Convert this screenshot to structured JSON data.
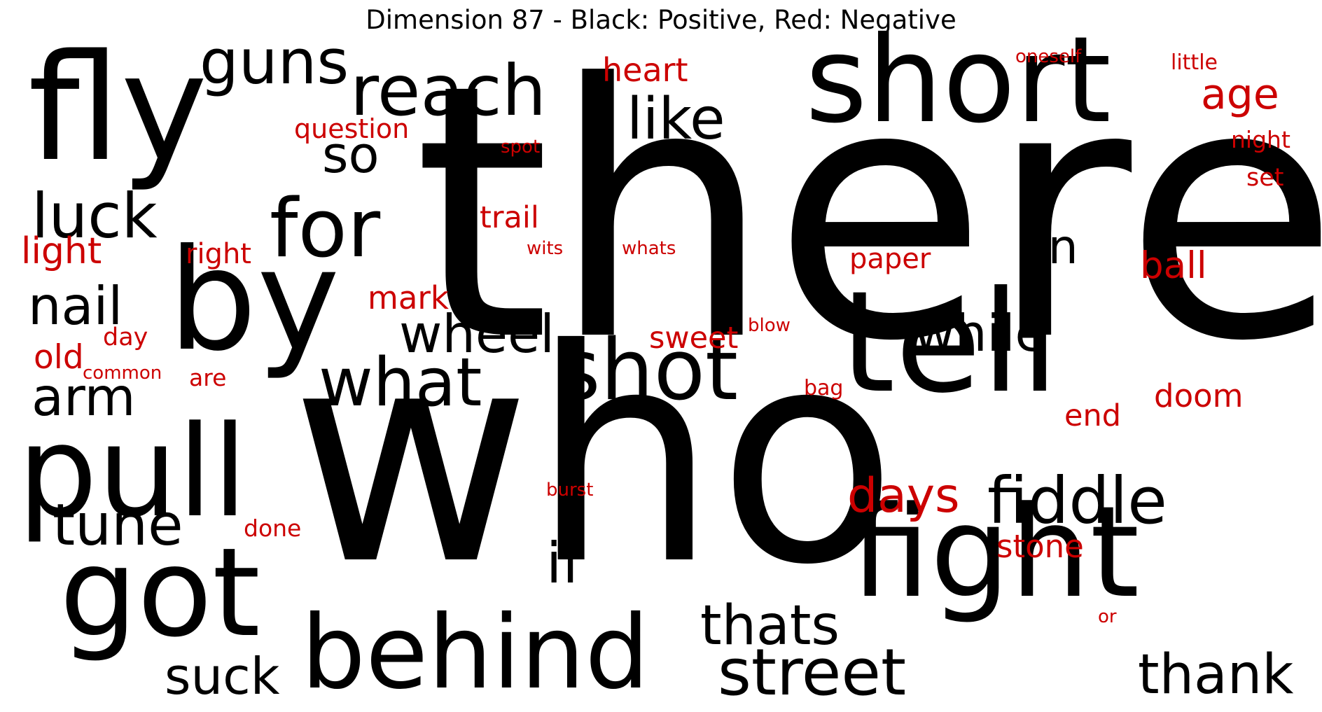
{
  "title": "Dimension 87 - Black: Positive, Red: Negative",
  "colors": {
    "positive": "#000000",
    "negative": "#cc0000"
  },
  "words": [
    {
      "text": "there",
      "polarity": "positive"
    },
    {
      "text": "who",
      "polarity": "positive"
    },
    {
      "text": "short",
      "polarity": "positive"
    },
    {
      "text": "fly",
      "polarity": "positive"
    },
    {
      "text": "tell",
      "polarity": "positive"
    },
    {
      "text": "by",
      "polarity": "positive"
    },
    {
      "text": "fight",
      "polarity": "positive"
    },
    {
      "text": "pull",
      "polarity": "positive"
    },
    {
      "text": "got",
      "polarity": "positive"
    },
    {
      "text": "behind",
      "polarity": "positive"
    },
    {
      "text": "shot",
      "polarity": "positive"
    },
    {
      "text": "for",
      "polarity": "positive"
    },
    {
      "text": "reach",
      "polarity": "positive"
    },
    {
      "text": "guns",
      "polarity": "positive"
    },
    {
      "text": "like",
      "polarity": "positive"
    },
    {
      "text": "so",
      "polarity": "positive"
    },
    {
      "text": "luck",
      "polarity": "positive"
    },
    {
      "text": "nail",
      "polarity": "positive"
    },
    {
      "text": "arm",
      "polarity": "positive"
    },
    {
      "text": "tune",
      "polarity": "positive"
    },
    {
      "text": "what",
      "polarity": "positive"
    },
    {
      "text": "wheel",
      "polarity": "positive"
    },
    {
      "text": "while",
      "polarity": "positive"
    },
    {
      "text": "on",
      "polarity": "positive"
    },
    {
      "text": "fiddle",
      "polarity": "positive"
    },
    {
      "text": "if",
      "polarity": "positive"
    },
    {
      "text": "thats",
      "polarity": "positive"
    },
    {
      "text": "street",
      "polarity": "positive"
    },
    {
      "text": "suck",
      "polarity": "positive"
    },
    {
      "text": "thank",
      "polarity": "positive"
    },
    {
      "text": "heart",
      "polarity": "negative"
    },
    {
      "text": "age",
      "polarity": "negative"
    },
    {
      "text": "question",
      "polarity": "negative"
    },
    {
      "text": "oneself",
      "polarity": "negative"
    },
    {
      "text": "little",
      "polarity": "negative"
    },
    {
      "text": "night",
      "polarity": "negative"
    },
    {
      "text": "set",
      "polarity": "negative"
    },
    {
      "text": "spot",
      "polarity": "negative"
    },
    {
      "text": "trail",
      "polarity": "negative"
    },
    {
      "text": "light",
      "polarity": "negative"
    },
    {
      "text": "right",
      "polarity": "negative"
    },
    {
      "text": "wits",
      "polarity": "negative"
    },
    {
      "text": "whats",
      "polarity": "negative"
    },
    {
      "text": "paper",
      "polarity": "negative"
    },
    {
      "text": "ball",
      "polarity": "negative"
    },
    {
      "text": "mark",
      "polarity": "negative"
    },
    {
      "text": "day",
      "polarity": "negative"
    },
    {
      "text": "old",
      "polarity": "negative"
    },
    {
      "text": "common",
      "polarity": "negative"
    },
    {
      "text": "are",
      "polarity": "negative"
    },
    {
      "text": "sweet",
      "polarity": "negative"
    },
    {
      "text": "blow",
      "polarity": "negative"
    },
    {
      "text": "bag",
      "polarity": "negative"
    },
    {
      "text": "doom",
      "polarity": "negative"
    },
    {
      "text": "end",
      "polarity": "negative"
    },
    {
      "text": "days",
      "polarity": "negative"
    },
    {
      "text": "burst",
      "polarity": "negative"
    },
    {
      "text": "done",
      "polarity": "negative"
    },
    {
      "text": "stone",
      "polarity": "negative"
    },
    {
      "text": "or",
      "polarity": "negative"
    }
  ]
}
